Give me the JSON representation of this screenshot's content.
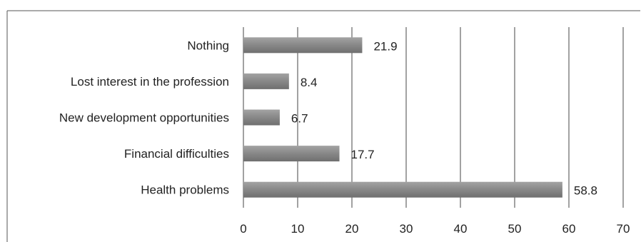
{
  "chart_data": {
    "type": "bar",
    "orientation": "horizontal",
    "categories": [
      "Nothing",
      "Lost interest in the profession",
      "New development opportunities",
      "Financial difficulties",
      "Health problems"
    ],
    "values": [
      21.9,
      8.4,
      6.7,
      17.7,
      58.8
    ],
    "data_labels": [
      "21.9",
      "8.4",
      "6.7",
      "17.7",
      "58.8"
    ],
    "x_ticks": [
      "0",
      "10",
      "20",
      "30",
      "40",
      "50",
      "60",
      "70"
    ],
    "xlim": [
      0,
      70
    ],
    "grid": true,
    "legend": "none",
    "colors": {
      "bar_light": "#a3a3a3",
      "bar_dark": "#6f6f6f",
      "grid": "#444444",
      "frame": "#555555",
      "text": "#222222"
    }
  }
}
